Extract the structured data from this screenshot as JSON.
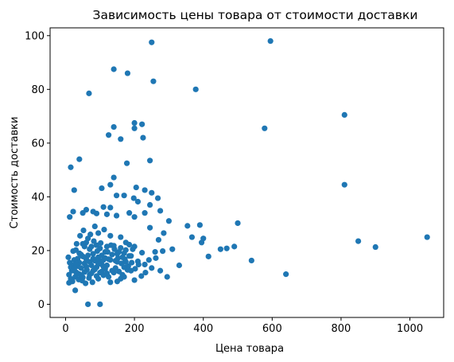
{
  "chart_data": {
    "type": "scatter",
    "title": "Зависимость цены товара от стоимости доставки",
    "xlabel": "Цена товара",
    "ylabel": "Стоимость доставки",
    "xlim": [
      -45,
      1098
    ],
    "ylim": [
      -4.9,
      102.9
    ],
    "xticks": [
      0,
      200,
      400,
      600,
      800,
      1000
    ],
    "yticks": [
      0,
      20,
      40,
      60,
      80,
      100
    ],
    "grid": false,
    "marker_color": "#1f77b4",
    "points": [
      [
        250,
        97.5
      ],
      [
        595,
        98
      ],
      [
        140,
        87.5
      ],
      [
        180,
        86
      ],
      [
        255,
        83
      ],
      [
        68,
        78.5
      ],
      [
        378,
        80
      ],
      [
        810,
        70.5
      ],
      [
        200,
        67.5
      ],
      [
        222,
        67
      ],
      [
        140,
        66
      ],
      [
        200,
        65.5
      ],
      [
        578,
        65.5
      ],
      [
        125,
        63
      ],
      [
        225,
        62
      ],
      [
        160,
        61.5
      ],
      [
        245,
        53.5
      ],
      [
        40,
        54
      ],
      [
        178,
        52.5
      ],
      [
        15,
        51
      ],
      [
        810,
        44.5
      ],
      [
        140,
        47.2
      ],
      [
        130,
        44.5
      ],
      [
        25,
        42.5
      ],
      [
        230,
        42.5
      ],
      [
        105,
        43.2
      ],
      [
        205,
        43.5
      ],
      [
        148,
        40.5
      ],
      [
        198,
        39.5
      ],
      [
        250,
        41.5
      ],
      [
        90,
        33.8
      ],
      [
        170,
        40.5
      ],
      [
        268,
        39.5
      ],
      [
        210,
        38.2
      ],
      [
        22,
        34.5
      ],
      [
        130,
        36
      ],
      [
        300,
        31
      ],
      [
        80,
        34.5
      ],
      [
        185,
        34
      ],
      [
        230,
        34
      ],
      [
        60,
        35.2
      ],
      [
        148,
        33
      ],
      [
        12,
        32.5
      ],
      [
        245,
        37
      ],
      [
        500,
        30.2
      ],
      [
        354,
        29.2
      ],
      [
        390,
        29.5
      ],
      [
        120,
        33.5
      ],
      [
        110,
        36.2
      ],
      [
        50,
        34
      ],
      [
        200,
        32.5
      ],
      [
        275,
        34.8
      ],
      [
        400,
        24.5
      ],
      [
        367,
        25
      ],
      [
        415,
        17.8
      ],
      [
        450,
        20.5
      ],
      [
        468,
        20.8
      ],
      [
        540,
        16.3
      ],
      [
        640,
        11.2
      ],
      [
        490,
        21.5
      ],
      [
        395,
        23
      ],
      [
        1050,
        25
      ],
      [
        850,
        23.5
      ],
      [
        900,
        21.3
      ],
      [
        330,
        14.5
      ],
      [
        285,
        26.5
      ],
      [
        310,
        20.5
      ],
      [
        245,
        28.5
      ],
      [
        260,
        19.5
      ],
      [
        270,
        24
      ],
      [
        85,
        29
      ],
      [
        95,
        26.5
      ],
      [
        160,
        25
      ],
      [
        175,
        23
      ],
      [
        130,
        25.5
      ],
      [
        200,
        21.5
      ],
      [
        60,
        23
      ],
      [
        30,
        20.2
      ],
      [
        45,
        18.5
      ],
      [
        55,
        21.5
      ],
      [
        70,
        15.8
      ],
      [
        80,
        18.8
      ],
      [
        100,
        20.8
      ],
      [
        115,
        17.2
      ],
      [
        150,
        15.8
      ],
      [
        170,
        19
      ],
      [
        190,
        18
      ],
      [
        210,
        16
      ],
      [
        230,
        14.8
      ],
      [
        250,
        13.5
      ],
      [
        275,
        12.5
      ],
      [
        295,
        10.2
      ],
      [
        18,
        12.5
      ],
      [
        25,
        16.5
      ],
      [
        35,
        14.2
      ],
      [
        40,
        11.2
      ],
      [
        50,
        17.8
      ],
      [
        62,
        12.8
      ],
      [
        75,
        11.5
      ],
      [
        90,
        13.8
      ],
      [
        105,
        12.2
      ],
      [
        120,
        14.5
      ],
      [
        140,
        11.8
      ],
      [
        160,
        9.5
      ],
      [
        180,
        12.8
      ],
      [
        200,
        9
      ],
      [
        220,
        10.5
      ],
      [
        8,
        17.5
      ],
      [
        12,
        15.5
      ],
      [
        15,
        13.8
      ],
      [
        20,
        8.5
      ],
      [
        28,
        10.2
      ],
      [
        38,
        9.2
      ],
      [
        48,
        8.8
      ],
      [
        58,
        7.8
      ],
      [
        68,
        9.8
      ],
      [
        78,
        8.2
      ],
      [
        95,
        9.5
      ],
      [
        110,
        10.8
      ],
      [
        130,
        8.2
      ],
      [
        150,
        8.5
      ],
      [
        170,
        10.2
      ],
      [
        190,
        12.5
      ],
      [
        65,
        0
      ],
      [
        100,
        0
      ],
      [
        28,
        5.2
      ],
      [
        10,
        11
      ],
      [
        22,
        19.8
      ],
      [
        32,
        22.5
      ],
      [
        42,
        25.5
      ],
      [
        52,
        27.5
      ],
      [
        72,
        26
      ],
      [
        82,
        23.5
      ],
      [
        92,
        19.8
      ],
      [
        102,
        22.8
      ],
      [
        112,
        27.8
      ],
      [
        122,
        19.5
      ],
      [
        132,
        22
      ],
      [
        142,
        20.5
      ],
      [
        152,
        17.2
      ],
      [
        162,
        15.2
      ],
      [
        172,
        16.8
      ],
      [
        182,
        14.2
      ],
      [
        192,
        15.5
      ],
      [
        202,
        13.2
      ],
      [
        212,
        14.8
      ],
      [
        222,
        19.2
      ],
      [
        232,
        11.8
      ],
      [
        242,
        16.5
      ],
      [
        262,
        17.2
      ],
      [
        282,
        19.8
      ],
      [
        35,
        17
      ],
      [
        45,
        13.5
      ],
      [
        55,
        15.2
      ],
      [
        65,
        18.2
      ],
      [
        75,
        14.5
      ],
      [
        85,
        16.2
      ],
      [
        95,
        17.5
      ],
      [
        105,
        14.8
      ],
      [
        115,
        19.5
      ],
      [
        125,
        16.8
      ],
      [
        135,
        18.5
      ],
      [
        145,
        13.5
      ],
      [
        155,
        12.2
      ],
      [
        165,
        17.5
      ],
      [
        175,
        20.2
      ],
      [
        185,
        22.2
      ],
      [
        30,
        12
      ],
      [
        40,
        15.5
      ],
      [
        50,
        10
      ],
      [
        60,
        14
      ],
      [
        70,
        20.5
      ],
      [
        80,
        12.5
      ],
      [
        90,
        10.5
      ],
      [
        100,
        16
      ],
      [
        110,
        14
      ],
      [
        120,
        11.5
      ],
      [
        130,
        16.5
      ],
      [
        140,
        21.8
      ],
      [
        150,
        18.8
      ],
      [
        160,
        21
      ],
      [
        170,
        13.8
      ],
      [
        10,
        8
      ],
      [
        15,
        9.5
      ],
      [
        20,
        14.5
      ],
      [
        25,
        13
      ],
      [
        30,
        15
      ],
      [
        35,
        11.5
      ],
      [
        40,
        19
      ],
      [
        45,
        10.8
      ],
      [
        50,
        22.5
      ],
      [
        55,
        12
      ],
      [
        60,
        16.8
      ],
      [
        65,
        24.5
      ],
      [
        70,
        11
      ],
      [
        75,
        21.5
      ],
      [
        80,
        17
      ],
      [
        85,
        13
      ],
      [
        90,
        22
      ],
      [
        95,
        15
      ],
      [
        100,
        11.8
      ],
      [
        105,
        18.2
      ],
      [
        110,
        16.5
      ],
      [
        115,
        13.2
      ],
      [
        120,
        21.5
      ],
      [
        125,
        10.2
      ],
      [
        135,
        12.5
      ],
      [
        145,
        16.2
      ],
      [
        155,
        19.5
      ],
      [
        165,
        11
      ],
      [
        175,
        15.8
      ],
      [
        185,
        18
      ],
      [
        195,
        20.5
      ]
    ]
  }
}
